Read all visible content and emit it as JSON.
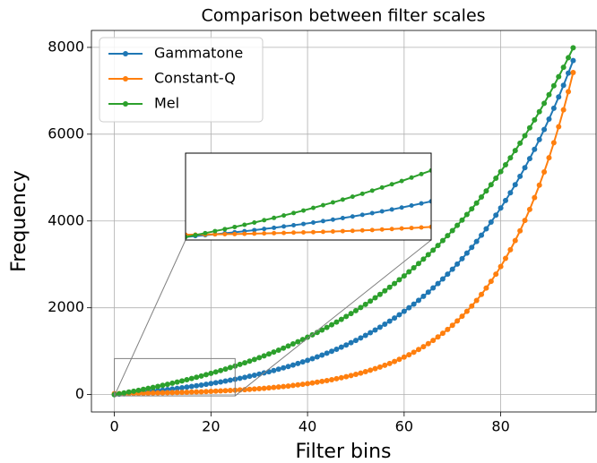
{
  "chart_data": {
    "type": "line",
    "title": "Comparison between filter scales",
    "xlabel": "Filter bins",
    "ylabel": "Frequency",
    "x": [
      0,
      1,
      2,
      3,
      4,
      5,
      6,
      7,
      8,
      9,
      10,
      11,
      12,
      13,
      14,
      15,
      16,
      17,
      18,
      19,
      20,
      21,
      22,
      23,
      24,
      25,
      26,
      27,
      28,
      29,
      30,
      31,
      32,
      33,
      34,
      35,
      36,
      37,
      38,
      39,
      40,
      41,
      42,
      43,
      44,
      45,
      46,
      47,
      48,
      49,
      50,
      51,
      52,
      53,
      54,
      55,
      56,
      57,
      58,
      59,
      60,
      61,
      62,
      63,
      64,
      65,
      66,
      67,
      68,
      69,
      70,
      71,
      72,
      73,
      74,
      75,
      76,
      77,
      78,
      79,
      80,
      81,
      82,
      83,
      84,
      85,
      86,
      87,
      88,
      89,
      90,
      91,
      92,
      93,
      94,
      95
    ],
    "series": [
      {
        "name": "Gammatone",
        "color": "#1f77b4",
        "values": [
          0,
          9,
          18,
          27,
          37,
          47,
          57,
          68,
          80,
          91,
          104,
          116,
          129,
          143,
          157,
          172,
          187,
          203,
          219,
          236,
          254,
          272,
          291,
          311,
          332,
          353,
          375,
          398,
          422,
          446,
          472,
          499,
          526,
          555,
          585,
          616,
          648,
          681,
          716,
          752,
          789,
          828,
          868,
          910,
          953,
          998,
          1045,
          1093,
          1143,
          1196,
          1249,
          1306,
          1364,
          1425,
          1488,
          1553,
          1621,
          1691,
          1764,
          1840,
          1918,
          2000,
          2085,
          2172,
          2264,
          2359,
          2457,
          2559,
          2665,
          2776,
          2889,
          3008,
          3131,
          3259,
          3391,
          3529,
          3672,
          3820,
          3974,
          4134,
          4299,
          4472,
          4650,
          4836,
          5029,
          5229,
          5436,
          5652,
          5876,
          6108,
          6348,
          6598,
          6857,
          7127,
          7407,
          7697
        ]
      },
      {
        "name": "Constant-Q",
        "color": "#ff7f0e",
        "values": [
          22,
          23,
          24,
          26,
          28,
          29,
          31,
          33,
          35,
          38,
          40,
          43,
          45,
          48,
          51,
          54,
          58,
          61,
          65,
          69,
          74,
          79,
          84,
          89,
          94,
          100,
          107,
          114,
          121,
          128,
          137,
          145,
          154,
          164,
          175,
          186,
          197,
          210,
          223,
          237,
          253,
          269,
          286,
          304,
          323,
          343,
          365,
          388,
          413,
          439,
          467,
          496,
          528,
          561,
          597,
          635,
          675,
          718,
          763,
          812,
          863,
          918,
          976,
          1038,
          1104,
          1174,
          1248,
          1327,
          1412,
          1501,
          1596,
          1697,
          1805,
          1919,
          2041,
          2170,
          2308,
          2454,
          2610,
          2775,
          2951,
          3138,
          3337,
          3549,
          3773,
          4013,
          4267,
          4538,
          4826,
          5131,
          5457,
          5803,
          6171,
          6562,
          6978,
          7420
        ]
      },
      {
        "name": "Mel",
        "color": "#2ca02c",
        "values": [
          0,
          19,
          38,
          58,
          78,
          99,
          121,
          143,
          166,
          189,
          213,
          237,
          262,
          288,
          315,
          342,
          370,
          399,
          428,
          459,
          490,
          522,
          554,
          588,
          623,
          658,
          695,
          732,
          771,
          810,
          851,
          892,
          935,
          979,
          1024,
          1071,
          1118,
          1167,
          1217,
          1269,
          1322,
          1376,
          1432,
          1489,
          1548,
          1608,
          1670,
          1734,
          1800,
          1867,
          1935,
          2006,
          2079,
          2154,
          2230,
          2309,
          2390,
          2473,
          2558,
          2646,
          2735,
          2828,
          2923,
          3020,
          3120,
          3223,
          3328,
          3436,
          3548,
          3662,
          3778,
          3899,
          4022,
          4149,
          4280,
          4414,
          4551,
          4692,
          4837,
          4986,
          5138,
          5295,
          5456,
          5622,
          5792,
          5966,
          6145,
          6329,
          6518,
          6712,
          6910,
          7115,
          7325,
          7541,
          7762,
          7990
        ]
      }
    ],
    "xlim": [
      -4.75,
      99.75
    ],
    "xticks": [
      0,
      20,
      40,
      60,
      80
    ],
    "ylim": [
      -400,
      8390
    ],
    "yticks": [
      0,
      2000,
      4000,
      6000,
      8000
    ],
    "grid": true,
    "legend": "upper left",
    "inset": {
      "xlim": [
        0,
        25
      ],
      "ylim": [
        -30,
        830
      ]
    }
  }
}
